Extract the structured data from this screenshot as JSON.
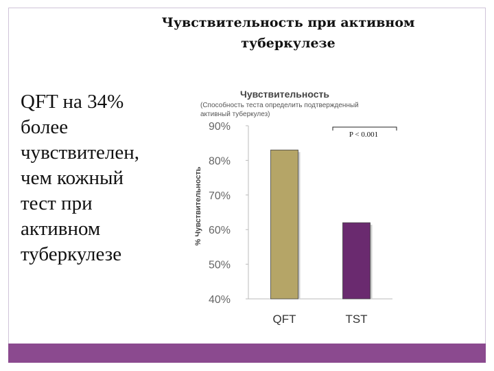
{
  "slide": {
    "title_line1": "Чувствительность при активном",
    "title_line2": "туберкулезе",
    "body_lines": [
      "QFT на 34%",
      "более",
      "чувствителен,",
      "чем кожный",
      "тест при",
      "активном",
      "туберкулезе"
    ]
  },
  "colors": {
    "accent_bar": "#8b4a8f",
    "qft": "#b5a567",
    "tst": "#6a2a6f"
  },
  "chart_data": {
    "type": "bar",
    "title": "Чувствительность",
    "subtitle_line1": "(Способность теста определить подтвержденный",
    "subtitle_line2": "активный туберкулез)",
    "ylabel": "% Чувствительность",
    "categories": [
      "QFT",
      "TST"
    ],
    "values": [
      83,
      62
    ],
    "ylim": [
      40,
      90
    ],
    "yticks": [
      90,
      80,
      70,
      60,
      50,
      40
    ],
    "ytick_labels": [
      "90%",
      "80%",
      "70%",
      "60%",
      "50%",
      "40%"
    ],
    "annotation": "P < 0.001",
    "grid": false
  }
}
